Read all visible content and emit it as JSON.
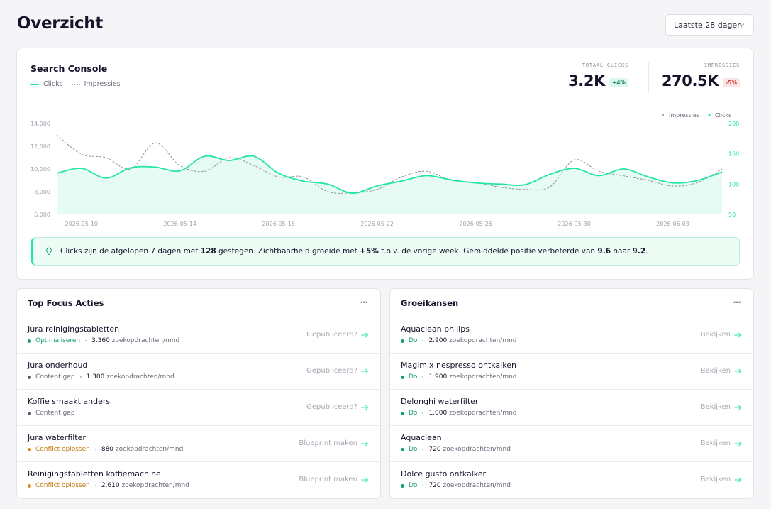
{
  "header": {
    "title": "Overzicht",
    "range_label": "Laatste 28 dagen"
  },
  "search_console": {
    "title": "Search Console",
    "legend_clicks": "Clicks",
    "legend_impressions": "Impressies",
    "kpis": [
      {
        "label": "TOTAAL CLICKS",
        "value": "3.2K",
        "delta": "+4%"
      },
      {
        "label": "IMPRESSIES",
        "value": "270.5K",
        "delta": "-5%"
      }
    ],
    "insight": {
      "p1": "Clicks zijn de afgelopen 7 dagen met ",
      "b1": "128",
      "p2": " gestegen. Zichtbaarheid groeide met ",
      "b2": "+5%",
      "p3": " t.o.v. de vorige week. Gemiddelde positie verbeterde van ",
      "b3": "9.6",
      "p4": " naar ",
      "b4": "9.2",
      "p5": "."
    }
  },
  "colors": {
    "clicks": "#22e5a6",
    "clicks_fill": "#e6fbf3",
    "impressions": "#8e8e9c",
    "optimise": "#12a06b",
    "content_gap": "#5b5b78",
    "conflict": "#d98a14",
    "do": "#12a06b"
  },
  "chart_data": {
    "type": "line",
    "legend": [
      "Impressies",
      "Clicks"
    ],
    "legend_placement": "top-right",
    "x_ticks": [
      "2026-05-10",
      "2026-05-14",
      "2026-05-18",
      "2026-05-22",
      "2026-05-26",
      "2026-05-30",
      "2026-06-03"
    ],
    "x": [
      "2026-05-09",
      "2026-05-10",
      "2026-05-11",
      "2026-05-12",
      "2026-05-13",
      "2026-05-14",
      "2026-05-15",
      "2026-05-16",
      "2026-05-17",
      "2026-05-18",
      "2026-05-19",
      "2026-05-20",
      "2026-05-21",
      "2026-05-22",
      "2026-05-23",
      "2026-05-24",
      "2026-05-25",
      "2026-05-26",
      "2026-05-27",
      "2026-05-28",
      "2026-05-29",
      "2026-05-30",
      "2026-05-31",
      "2026-06-01",
      "2026-06-02",
      "2026-06-03",
      "2026-06-04",
      "2026-06-05"
    ],
    "y_left_ticks": [
      "6,000",
      "8,000",
      "10,000",
      "12,000",
      "14,000"
    ],
    "y_left_range": [
      6000,
      14000
    ],
    "y_right_ticks": [
      "50",
      "100",
      "150",
      "200"
    ],
    "y_right_range": [
      50,
      200
    ],
    "grid": false,
    "series": [
      {
        "name": "Impressies",
        "axis": "left",
        "style": "dotted",
        "values": [
          13000,
          11300,
          11000,
          10000,
          12300,
          10300,
          9800,
          11000,
          10300,
          9300,
          9300,
          8000,
          7900,
          8200,
          9300,
          9800,
          9000,
          8800,
          8400,
          8200,
          8400,
          10800,
          9800,
          9400,
          9000,
          8500,
          8800,
          10000
        ]
      },
      {
        "name": "Clicks",
        "axis": "right",
        "style": "solid-filled",
        "values": [
          118,
          126,
          110,
          127,
          128,
          122,
          146,
          139,
          146,
          118,
          105,
          100,
          85,
          97,
          105,
          114,
          107,
          102,
          100,
          99,
          116,
          126,
          114,
          125,
          112,
          102,
          106,
          120
        ]
      }
    ]
  },
  "focus": {
    "title": "Top Focus Acties",
    "rows": [
      {
        "title": "Jura reinigingstabletten",
        "tag": "Optimaliseren",
        "tag_color": "#12a06b",
        "tag_text_color": "#12a06b",
        "volume": "3.360",
        "volume_suffix": " zoekopdrachten/mnd",
        "action": "Gepubliceerd?"
      },
      {
        "title": "Jura onderhoud",
        "tag": "Content gap",
        "tag_color": "#5b5b78",
        "tag_text_color": "#6b6b7b",
        "volume": "1.300",
        "volume_suffix": " zoekopdrachten/mnd",
        "action": "Gepubliceerd?"
      },
      {
        "title": "Koffie smaakt anders",
        "tag": "Content gap",
        "tag_color": "#5b5b78",
        "tag_text_color": "#6b6b7b",
        "volume": "",
        "volume_suffix": "",
        "action": "Gepubliceerd?"
      },
      {
        "title": "Jura waterfilter",
        "tag": "Conflict oplossen",
        "tag_color": "#d98a14",
        "tag_text_color": "#c27a0e",
        "volume": "880",
        "volume_suffix": " zoekopdrachten/mnd",
        "action": "Blueprint maken"
      },
      {
        "title": "Reinigingstabletten koffiemachine",
        "tag": "Conflict oplossen",
        "tag_color": "#d98a14",
        "tag_text_color": "#c27a0e",
        "volume": "2.610",
        "volume_suffix": " zoekopdrachten/mnd",
        "action": "Blueprint maken"
      }
    ]
  },
  "growth": {
    "title": "Groeikansen",
    "rows": [
      {
        "title": "Aquaclean philips",
        "tag": "Do",
        "tag_color": "#12a06b",
        "tag_text_color": "#12a06b",
        "volume": "2.900",
        "volume_suffix": " zoekopdrachten/mnd",
        "action": "Bekijken"
      },
      {
        "title": "Magimix nespresso ontkalken",
        "tag": "Do",
        "tag_color": "#12a06b",
        "tag_text_color": "#12a06b",
        "volume": "1.900",
        "volume_suffix": " zoekopdrachten/mnd",
        "action": "Bekijken"
      },
      {
        "title": "Delonghi waterfilter",
        "tag": "Do",
        "tag_color": "#12a06b",
        "tag_text_color": "#12a06b",
        "volume": "1.000",
        "volume_suffix": " zoekopdrachten/mnd",
        "action": "Bekijken"
      },
      {
        "title": "Aquaclean",
        "tag": "Do",
        "tag_color": "#12a06b",
        "tag_text_color": "#12a06b",
        "volume": "720",
        "volume_suffix": " zoekopdrachten/mnd",
        "action": "Bekijken"
      },
      {
        "title": "Dolce gusto ontkalker",
        "tag": "Do",
        "tag_color": "#12a06b",
        "tag_text_color": "#12a06b",
        "volume": "720",
        "volume_suffix": " zoekopdrachten/mnd",
        "action": "Bekijken"
      }
    ]
  }
}
